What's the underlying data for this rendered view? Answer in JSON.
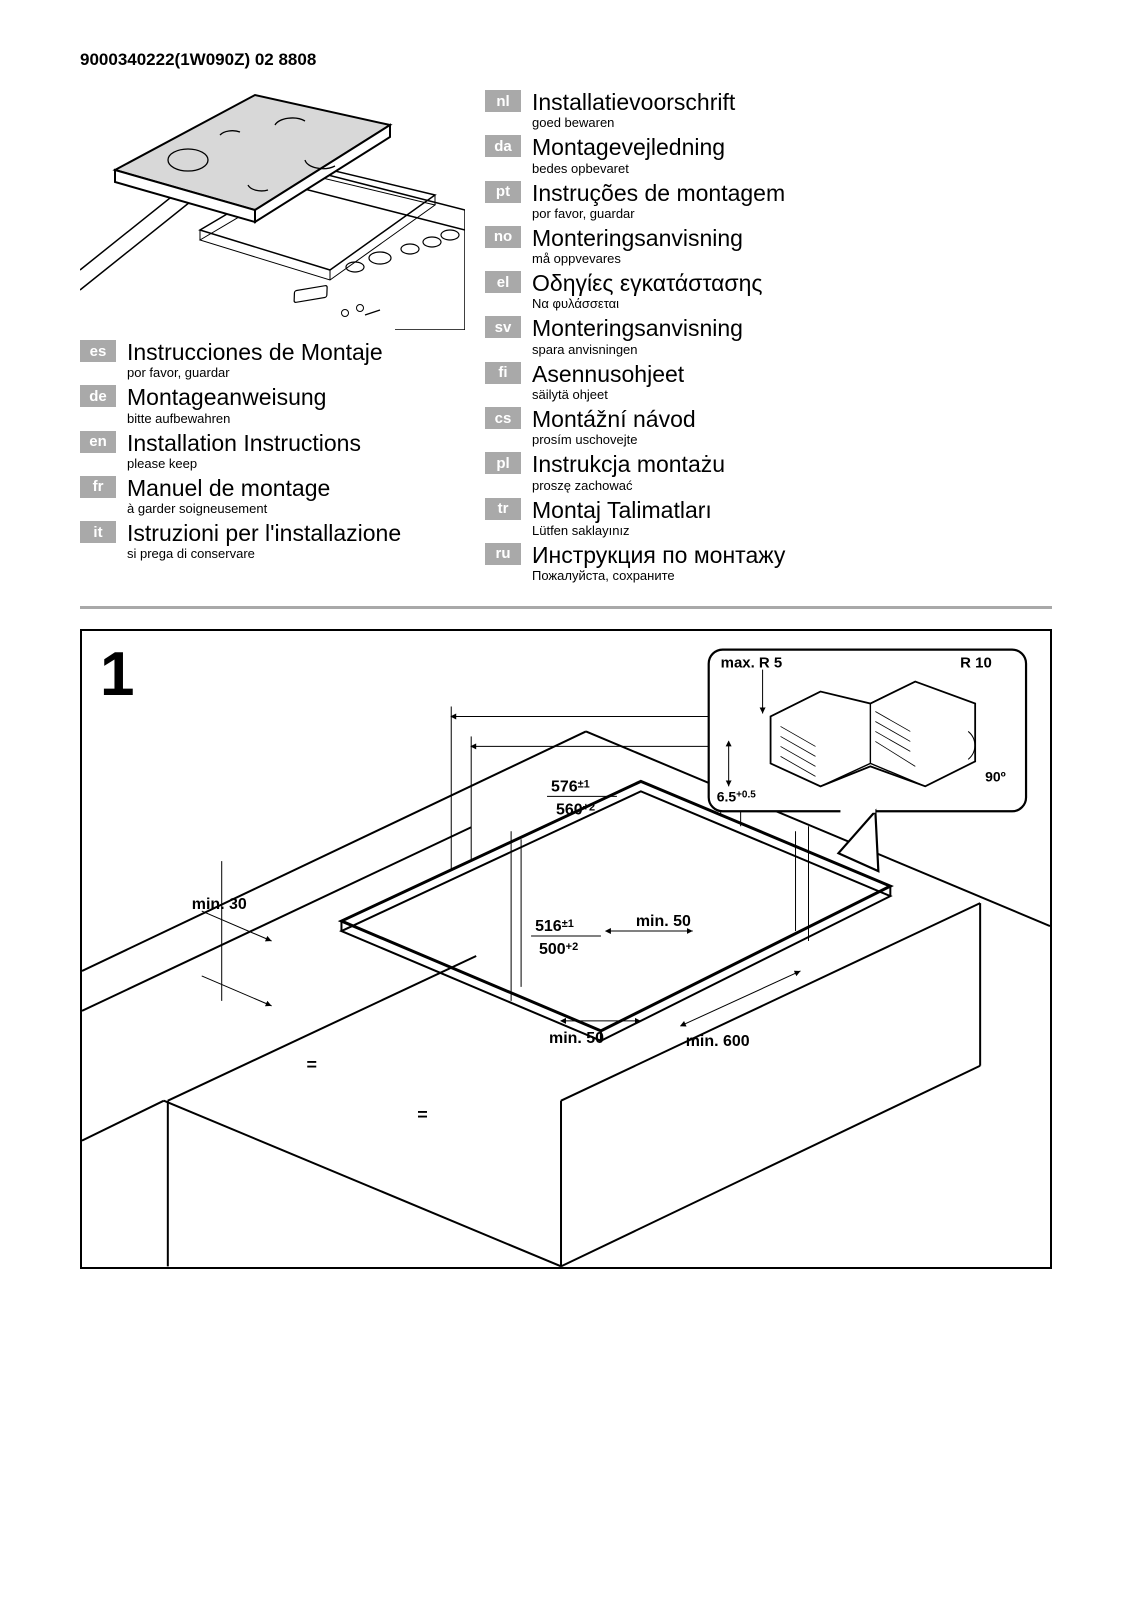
{
  "doc_number": "9000340222(1W090Z) 02 8808",
  "languages_left": [
    {
      "code": "es",
      "title": "Instrucciones de Montaje",
      "sub": "por favor, guardar"
    },
    {
      "code": "de",
      "title": "Montageanweisung",
      "sub": "bitte aufbewahren"
    },
    {
      "code": "en",
      "title": "Installation Instructions",
      "sub": "please keep"
    },
    {
      "code": "fr",
      "title": "Manuel de montage",
      "sub": "à garder soigneusement"
    },
    {
      "code": "it",
      "title": "Istruzioni per l'installazione",
      "sub": "si prega di conservare"
    }
  ],
  "languages_right": [
    {
      "code": "nl",
      "title": "Installatievoorschrift",
      "sub": "goed bewaren"
    },
    {
      "code": "da",
      "title": "Montagevejledning",
      "sub": "bedes opbevaret"
    },
    {
      "code": "pt",
      "title": "Instruções de montagem",
      "sub": "por favor, guardar"
    },
    {
      "code": "no",
      "title": "Monteringsanvisning",
      "sub": "må oppvevares"
    },
    {
      "code": "el",
      "title": "Οδηγίες εγκατάστασης",
      "sub": "Να φυλάσσεται"
    },
    {
      "code": "sv",
      "title": "Monteringsanvisning",
      "sub": "spara anvisningen"
    },
    {
      "code": "fi",
      "title": "Asennusohjeet",
      "sub": "säilytä ohjeet"
    },
    {
      "code": "cs",
      "title": "Montážní návod",
      "sub": "prosím uschovejte"
    },
    {
      "code": "pl",
      "title": "Instrukcja montażu",
      "sub": "proszę zachować"
    },
    {
      "code": "tr",
      "title": "Montaj Talimatları",
      "sub": "Lütfen saklayınız"
    },
    {
      "code": "ru",
      "title": "Инструкция по монтажу",
      "sub": "Пожалуйста, сохраните"
    }
  ],
  "diagram": {
    "number": "1",
    "detail_labels": {
      "maxR5": "max. R 5",
      "R10": "R 10",
      "sixpointfive": "6.5",
      "plus05": "+0.5",
      "ninety": "90º"
    },
    "dims": {
      "w1": "576",
      "w1tol": "±1",
      "w2": "560",
      "w2tol": "+2",
      "d1": "516",
      "d1tol": "±1",
      "d2": "500",
      "d2tol": "+2",
      "min30": "min. 30",
      "min50a": "min. 50",
      "min50b": "min. 50",
      "min600": "min. 600"
    }
  },
  "colors": {
    "langBadge": "#a9a9a9",
    "divider": "#a9a9a9"
  }
}
